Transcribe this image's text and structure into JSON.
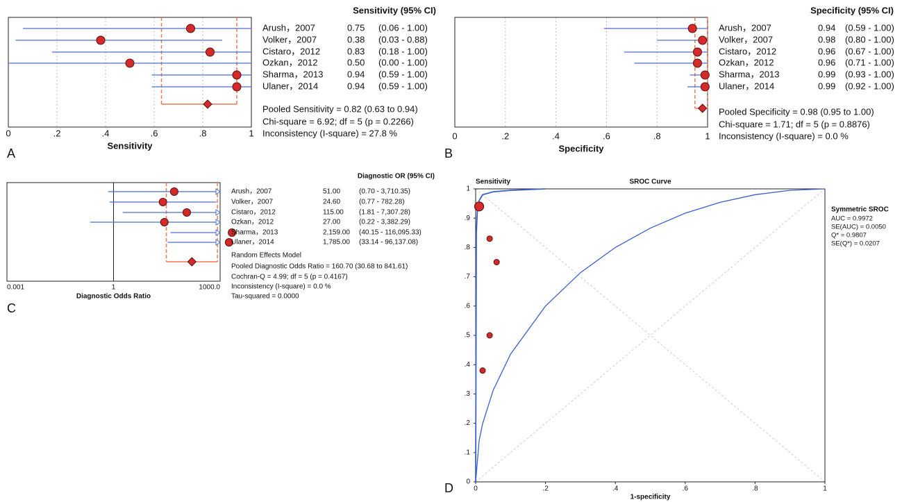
{
  "chart_data": [
    {
      "type": "forest",
      "panel_label": "A",
      "title": "Sensitivity (95% CI)",
      "xlabel": "Sensitivity",
      "categories": [
        "Arush，2007",
        "Volker，2007",
        "Cistaro，2012",
        "Ozkan，2012",
        "Sharma，2013",
        "Ulaner，2014"
      ],
      "values": [
        0.75,
        0.38,
        0.83,
        0.5,
        0.94,
        0.94
      ],
      "value_labels": [
        "0.75",
        "0.38",
        "0.83",
        "0.50",
        "0.94",
        "0.94"
      ],
      "lower": [
        0.06,
        0.03,
        0.18,
        0,
        0.59,
        0.59
      ],
      "upper": [
        1,
        0.88,
        1,
        1,
        1,
        1
      ],
      "ci_labels": [
        "(0.06 - 1.00)",
        "(0.03 - 0.88)",
        "(0.18 - 1.00)",
        "(0.00 - 1.00)",
        "(0.59 - 1.00)",
        "(0.59 - 1.00)"
      ],
      "pooled": 0.82,
      "pooled_ci": [
        0.63,
        0.94
      ],
      "stats": [
        "Pooled Sensitivity = 0.82 (0.63 to 0.94)",
        "Chi-square = 6.92; df =  5 (p = 0.2266)",
        "Inconsistency (I-square) = 27.8 %"
      ],
      "xlim": [
        0,
        1
      ],
      "xticks": [
        0,
        {
          "value": 0.2,
          "label": ".2"
        },
        {
          "value": 0.4,
          "label": ".4"
        },
        {
          "value": 0.6,
          "label": ".6"
        },
        {
          "value": 0.8,
          "label": ".8"
        },
        1
      ],
      "log": false,
      "grid": true,
      "color": "#d42a2a",
      "line_color": "#4a6fd0",
      "ci_color": "#f07850"
    },
    {
      "type": "forest",
      "panel_label": "B",
      "title": "Specificity (95% CI)",
      "xlabel": "Specificity",
      "categories": [
        "Arush，2007",
        "Volker，2007",
        "Cistaro，2012",
        "Ozkan，2012",
        "Sharma，2013",
        "Ulaner，2014"
      ],
      "values": [
        0.94,
        0.98,
        0.96,
        0.96,
        0.99,
        0.99
      ],
      "value_labels": [
        "0.94",
        "0.98",
        "0.96",
        "0.96",
        "0.99",
        "0.99"
      ],
      "lower": [
        0.59,
        0.8,
        0.67,
        0.71,
        0.93,
        0.92
      ],
      "upper": [
        1,
        1,
        1,
        1,
        1,
        1
      ],
      "ci_labels": [
        "(0.59 - 1.00)",
        "(0.80 - 1.00)",
        "(0.67 - 1.00)",
        "(0.71 - 1.00)",
        "(0.93 - 1.00)",
        "(0.92 - 1.00)"
      ],
      "pooled": 0.98,
      "pooled_ci": [
        0.95,
        1
      ],
      "stats": [
        "Pooled Specificity = 0.98 (0.95 to 1.00)",
        "Chi-square = 1.71; df =  5 (p = 0.8876)",
        "Inconsistency (I-square) = 0.0 %"
      ],
      "xlim": [
        0,
        1
      ],
      "xticks": [
        0,
        {
          "value": 0.2,
          "label": ".2"
        },
        {
          "value": 0.4,
          "label": ".4"
        },
        {
          "value": 0.6,
          "label": ".6"
        },
        {
          "value": 0.8,
          "label": ".8"
        },
        1
      ],
      "log": false,
      "grid": true,
      "color": "#d42a2a",
      "line_color": "#4a6fd0",
      "ci_color": "#f07850"
    },
    {
      "type": "forest",
      "panel_label": "C",
      "title": "Diagnostic OR (95% CI)",
      "xlabel": "Diagnostic Odds Ratio",
      "categories": [
        "Arush，2007",
        "Volker，2007",
        "Cistaro，2012",
        "Ozkan，2012",
        "Sharma，2013",
        "Ulaner，2014"
      ],
      "values": [
        51,
        24.6,
        115,
        27,
        2159,
        1785
      ],
      "value_labels": [
        "51.00",
        "24.60",
        "115.00",
        "27.00",
        "2,159.00",
        "1,785.00"
      ],
      "lower": [
        0.7,
        0.77,
        1.81,
        0.22,
        40.15,
        33.14
      ],
      "upper": [
        3710.35,
        782.28,
        7307.28,
        3382.29,
        116095.33,
        96137.08
      ],
      "ci_labels": [
        "(0.70 - 3,710.35)",
        "(0.77 - 782.28)",
        "(1.81 - 7,307.28)",
        "(0.22 - 3,382.29)",
        "(40.15 - 116,095.33)",
        "(33.14 - 96,137.08)"
      ],
      "pooled": 160.7,
      "pooled_ci": [
        30.68,
        841.61
      ],
      "stats": [
        "Random Effects Model",
        "Pooled Diagnostic Odds Ratio = 160.70 (30.68 to 841.61)",
        "Cochran-Q = 4.99; df =  5 (p = 0.4167)",
        "Inconsistency (I-square) = 0.0 %",
        "Tau-squared = 0.0000"
      ],
      "xlim": [
        0.001,
        1000
      ],
      "xticks": [
        0.001,
        1,
        {
          "value": 1000,
          "label": "1000.0"
        }
      ],
      "log": true,
      "grid": true,
      "color": "#d42a2a",
      "line_color": "#4a6fd0",
      "ci_color": "#f07850"
    },
    {
      "type": "sroc",
      "panel_label": "D",
      "title": "SROC Curve",
      "ylabel": "Sensitivity",
      "xlabel": "1-specificity",
      "points": {
        "x": [
          0.06,
          0.02,
          0.04,
          0.04,
          0.01,
          0.01
        ],
        "y": [
          0.75,
          0.38,
          0.83,
          0.5,
          0.94,
          0.94
        ]
      },
      "series": [
        {
          "name": "Symmetric SROC",
          "color": "#3a5fcd",
          "x": [
            0,
            0.002,
            0.005,
            0.01,
            0.02,
            0.05,
            0.1,
            0.2
          ],
          "y": [
            0,
            0.85,
            0.93,
            0.96,
            0.98,
            0.99,
            0.995,
            1
          ]
        }
      ],
      "reference_curve": {
        "color": "#3a5fcd",
        "x": [
          0,
          0.01,
          0.02,
          0.05,
          0.1,
          0.2,
          0.3,
          0.4,
          0.5,
          0.6,
          0.7,
          0.8,
          0.9,
          1
        ],
        "y": [
          0,
          0.141,
          0.199,
          0.312,
          0.436,
          0.6,
          0.714,
          0.8,
          0.866,
          0.917,
          0.954,
          0.98,
          0.995,
          1
        ]
      },
      "legend_lines": [
        "AUC = 0.9972",
        "SE(AUC) = 0.0050",
        "Q* = 0.9807",
        "SE(Q*) = 0.0207"
      ],
      "xlim": [
        0,
        1
      ],
      "ylim": [
        0,
        1
      ],
      "xticks": [
        0,
        {
          "value": 0.2,
          "label": ".2"
        },
        {
          "value": 0.4,
          "label": ".4"
        },
        {
          "value": 0.6,
          "label": ".6"
        },
        {
          "value": 0.8,
          "label": ".8"
        },
        1
      ],
      "yticks": [
        0,
        {
          "value": 0.1,
          "label": ".1"
        },
        {
          "value": 0.2,
          "label": ".2"
        },
        {
          "value": 0.3,
          "label": ".3"
        },
        {
          "value": 0.4,
          "label": ".4"
        },
        {
          "value": 0.5,
          "label": ".5"
        },
        {
          "value": 0.6,
          "label": ".6"
        },
        {
          "value": 0.7,
          "label": ".7"
        },
        {
          "value": 0.8,
          "label": ".8"
        },
        {
          "value": 0.9,
          "label": ".9"
        },
        1
      ],
      "color": "#d42a2a"
    }
  ]
}
